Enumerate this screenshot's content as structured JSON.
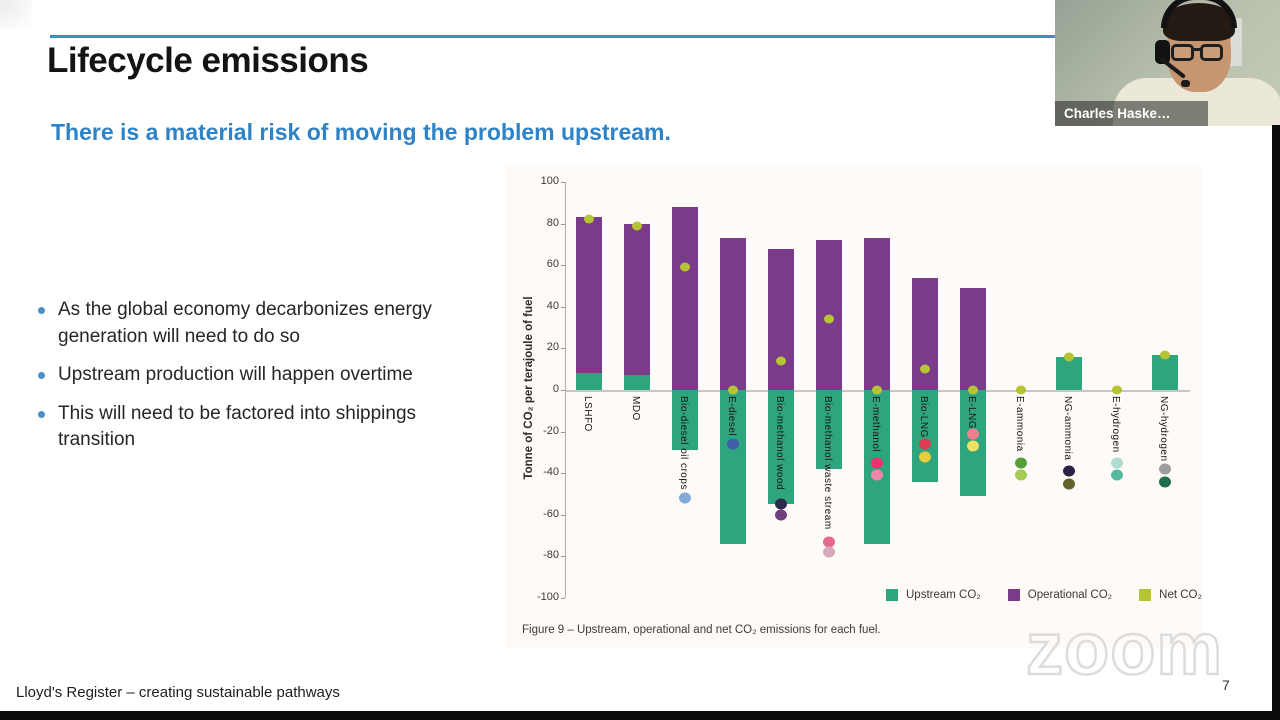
{
  "slide": {
    "title": "Lifecycle emissions",
    "subtitle": "There is a material risk of moving the problem upstream.",
    "bullets": [
      "As the global economy decarbonizes energy generation will need to do so",
      "Upstream production will happen overtime",
      "This will need to be factored into shippings transition"
    ],
    "footer": "Lloyd's Register – creating sustainable pathways",
    "page_number": "7"
  },
  "webcam": {
    "name_label": "Charles Haske…"
  },
  "watermark": "zoom",
  "colors": {
    "accent_blue": "#2E86C8",
    "upstream_green": "#2EA57E",
    "operational_purple": "#7A3B8A",
    "net_yellow": "#B5C434"
  },
  "chart_data": {
    "type": "bar",
    "subtype": "stacked-bars-with-point-markers",
    "title": "",
    "xlabel": "",
    "ylabel": "Tonne of CO₂ per terajoule of fuel",
    "ylim": [
      -100,
      100
    ],
    "ytick_step": 20,
    "grid": "zero-baseline-only",
    "legend_position": "bottom-right",
    "caption": "Figure 9 – Upstream, operational and net CO₂ emissions for each fuel.",
    "legend": [
      {
        "label": "Upstream CO₂",
        "color": "#2EA57E"
      },
      {
        "label": "Operational CO₂",
        "color": "#7A3B8A"
      },
      {
        "label": "Net CO₂",
        "color": "#B5C434"
      }
    ],
    "categories": [
      "LSHFO",
      "MDO",
      "Bio-diesel oil crops",
      "E-diesel",
      "Bio-methanol wood",
      "Bio-methanol waste stream",
      "E-methanol",
      "Bio-LNG",
      "E-LNG",
      "E-ammonia",
      "NG-ammonia",
      "E-hydrogen",
      "NG-hydrogen"
    ],
    "series": [
      {
        "name": "Upstream CO₂",
        "role": "bar",
        "color": "#2EA57E",
        "values": [
          8,
          7,
          -29,
          -74,
          -55,
          -38,
          -74,
          -44,
          -51,
          0,
          16,
          0,
          17
        ]
      },
      {
        "name": "Operational CO₂",
        "role": "bar-stacked",
        "color": "#7A3B8A",
        "values": [
          75,
          73,
          88,
          73,
          68,
          72,
          73,
          54,
          49,
          0,
          0,
          0,
          0
        ]
      },
      {
        "name": "Net CO₂",
        "role": "point",
        "color": "#B5C434",
        "values": [
          82,
          79,
          59,
          0,
          14,
          34,
          0,
          10,
          0,
          0,
          16,
          0,
          17
        ]
      }
    ],
    "extra_markers": [
      {
        "category": "Bio-diesel oil crops",
        "points": [
          {
            "value": -52,
            "color": "#82ABD8"
          }
        ]
      },
      {
        "category": "E-diesel",
        "points": [
          {
            "value": -26,
            "color": "#3F5EA8"
          }
        ]
      },
      {
        "category": "Bio-methanol wood",
        "points": [
          {
            "value": -55,
            "color": "#2E2A4A"
          },
          {
            "value": -60,
            "color": "#6E3E7E"
          }
        ]
      },
      {
        "category": "Bio-methanol waste stream",
        "points": [
          {
            "value": -73,
            "color": "#E2688F"
          },
          {
            "value": -78,
            "color": "#D8A8BC"
          }
        ]
      },
      {
        "category": "E-methanol",
        "points": [
          {
            "value": -35,
            "color": "#E83272"
          },
          {
            "value": -41,
            "color": "#EE86AC"
          }
        ]
      },
      {
        "category": "Bio-LNG",
        "points": [
          {
            "value": -26,
            "color": "#E03A55"
          },
          {
            "value": -32,
            "color": "#E6CE3E"
          }
        ]
      },
      {
        "category": "E-LNG",
        "points": [
          {
            "value": -21,
            "color": "#EF8090"
          },
          {
            "value": -27,
            "color": "#EDE065"
          }
        ]
      },
      {
        "category": "E-ammonia",
        "points": [
          {
            "value": -35,
            "color": "#55A03C"
          },
          {
            "value": -41,
            "color": "#A5CB52"
          }
        ]
      },
      {
        "category": "NG-ammonia",
        "points": [
          {
            "value": -39,
            "color": "#2B2343"
          },
          {
            "value": -45,
            "color": "#63642C"
          }
        ]
      },
      {
        "category": "E-hydrogen",
        "points": [
          {
            "value": -35,
            "color": "#AEDCD0"
          },
          {
            "value": -41,
            "color": "#57B8A2"
          }
        ]
      },
      {
        "category": "NG-hydrogen",
        "points": [
          {
            "value": -38,
            "color": "#9C9C9C"
          },
          {
            "value": -44,
            "color": "#1E6E4C"
          }
        ]
      }
    ]
  }
}
